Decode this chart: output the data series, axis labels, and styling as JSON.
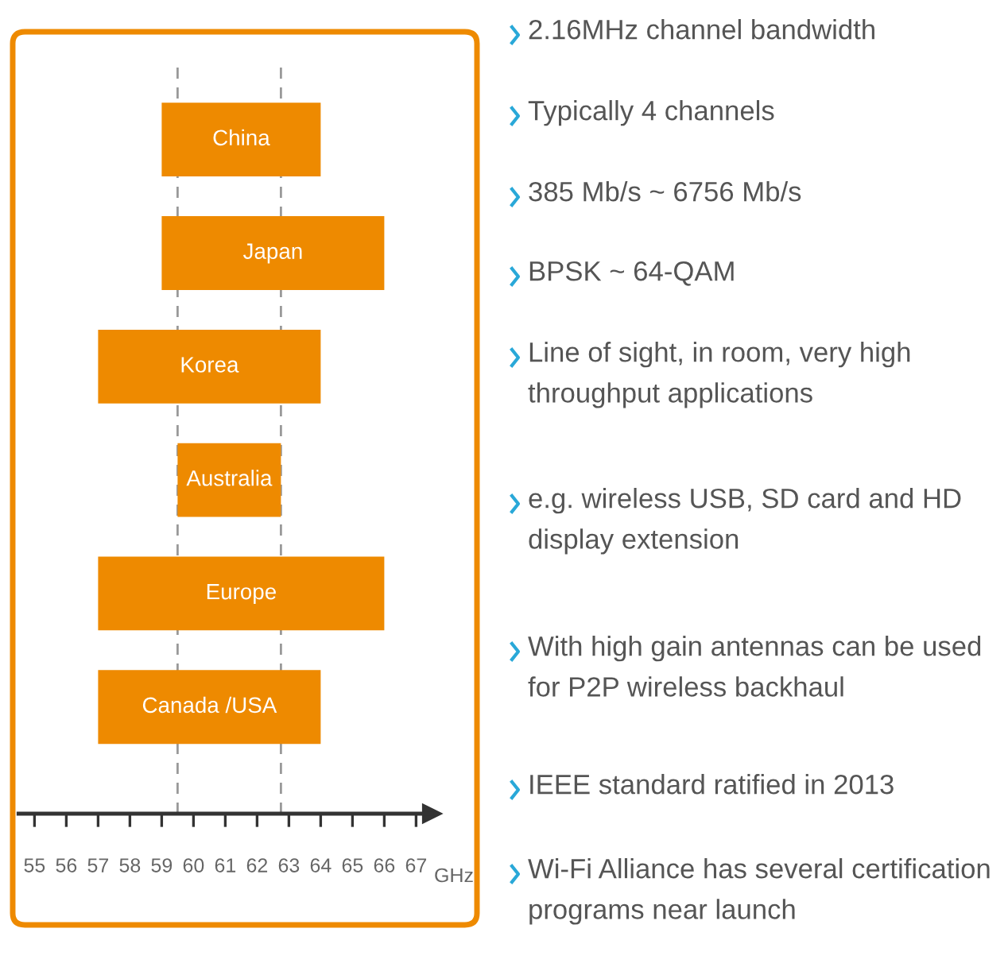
{
  "chart_data": {
    "type": "bar",
    "orientation": "horizontal",
    "categories": [
      "China",
      "Japan",
      "Korea",
      "Australia",
      "Europe",
      "Canada /USA"
    ],
    "base": [
      59,
      59,
      57,
      59.5,
      57,
      57
    ],
    "values": [
      5,
      7,
      7,
      3.25,
      9,
      7
    ],
    "color": "#ee8a00",
    "xlabel": "GHz",
    "xlim": [
      54.5,
      67.5
    ],
    "xticks": [
      55,
      56,
      57,
      58,
      59,
      60,
      61,
      62,
      63,
      64,
      65,
      66,
      67
    ],
    "tick_labels": "x",
    "grid": false,
    "legend": false,
    "ref_lines": [
      {
        "axis": "x",
        "value": 59.5,
        "color": "#999999",
        "line_style": "dashed"
      },
      {
        "axis": "x",
        "value": 62.75,
        "color": "#999999",
        "line_style": "dashed"
      }
    ],
    "annotations": [
      "2.16MHz channel bandwidth",
      "Typically 4 channels",
      "385 Mb/s ~ 6756 Mb/s",
      "BPSK ~ 64-QAM",
      "Line of sight, in room, very high throughput applications",
      "e.g. wireless USB, SD card and HD display extension",
      "With high gain antennas can be used for P2P wireless backhaul",
      "IEEE standard ratified in 2013",
      "Wi-Fi Alliance has several certification programs near launch"
    ]
  }
}
